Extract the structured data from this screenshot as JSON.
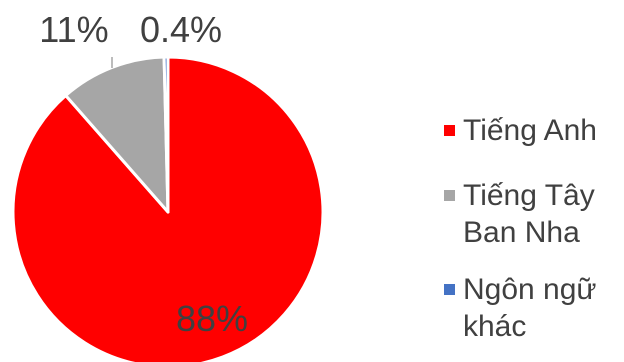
{
  "chart_data": {
    "type": "pie",
    "categories": [
      "Tiếng Anh",
      "Tiếng Tây Ban Nha",
      "Ngôn ngữ khác"
    ],
    "values": [
      88,
      11,
      0.4
    ],
    "data_labels": [
      "88%",
      "11%",
      "0.4%"
    ],
    "colors": [
      "#ff0000",
      "#a6a6a6",
      "#4472c4"
    ],
    "legend_position": "right",
    "title": ""
  }
}
